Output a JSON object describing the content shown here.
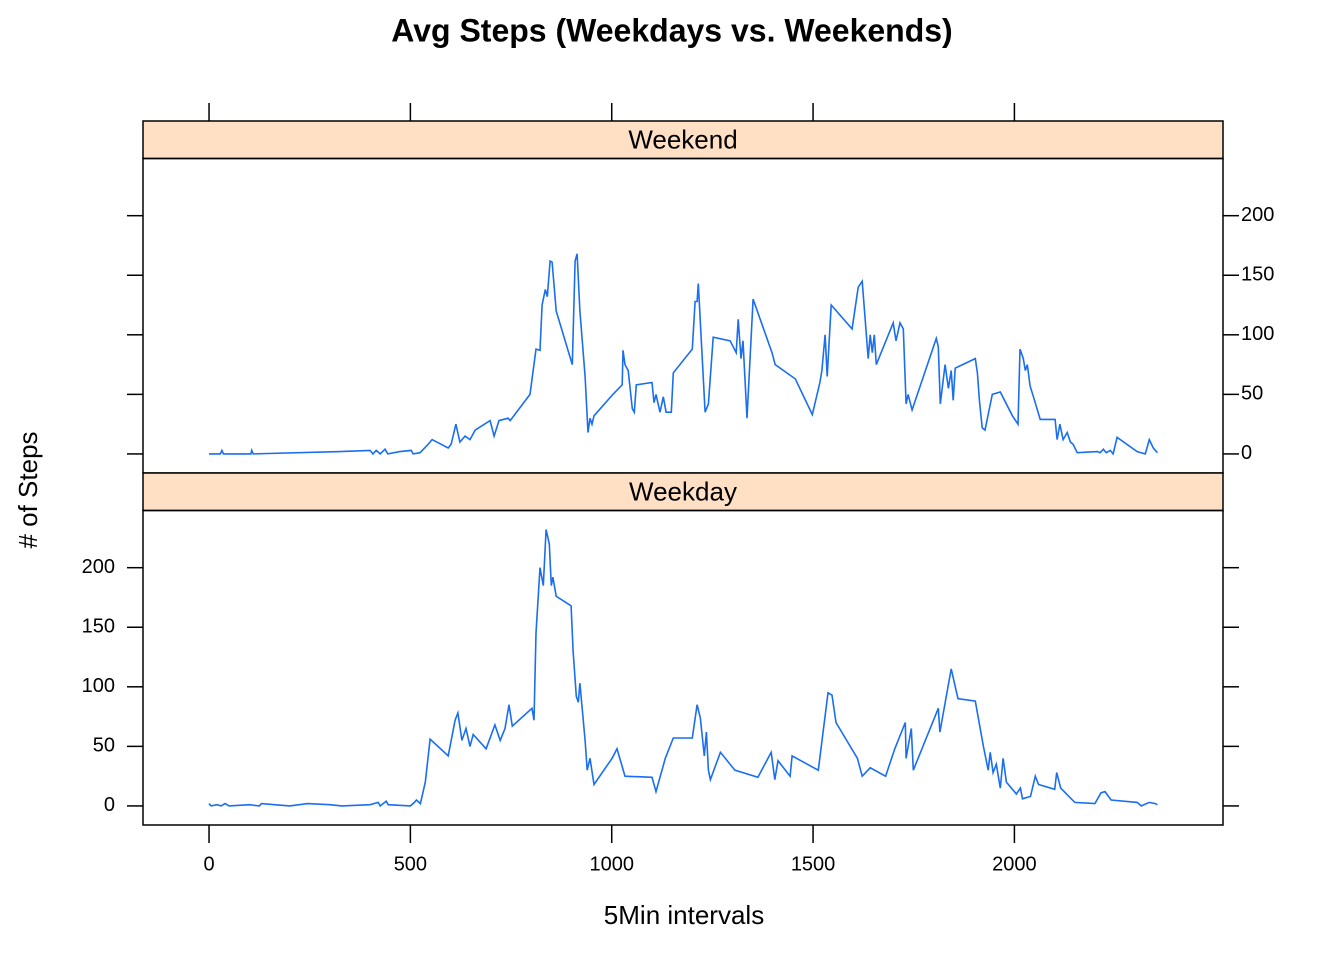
{
  "chart_data": {
    "type": "line",
    "title": "Avg Steps (Weekdays vs. Weekends)",
    "x_label": "5Min intervals",
    "y_label": "# of Steps",
    "xlim": [
      -164,
      2518
    ],
    "ylim": [
      -16,
      248
    ],
    "xticks": [
      0,
      500,
      1000,
      1500,
      2000
    ],
    "yticks": [
      0,
      50,
      100,
      150,
      200
    ],
    "strip_color": "#ffe0c4",
    "series": [
      {
        "name": "Weekend",
        "color": "#1a6ef0",
        "x": [
          0,
          28,
          32,
          36,
          104,
          106,
          110,
          325,
          400,
          407,
          415,
          425,
          437,
          444,
          474,
          502,
          507,
          524,
          544,
          554,
          594,
          601,
          613,
          623,
          636,
          648,
          661,
          698,
          708,
          720,
          743,
          748,
          797,
          812,
          822,
          827,
          835,
          840,
          847,
          852,
          862,
          902,
          909,
          914,
          921,
          934,
          941,
          946,
          951,
          956,
          1003,
          1026,
          1028,
          1033,
          1041,
          1051,
          1056,
          1061,
          1100,
          1105,
          1110,
          1120,
          1128,
          1135,
          1148,
          1153,
          1200,
          1207,
          1212,
          1215,
          1232,
          1240,
          1252,
          1294,
          1309,
          1314,
          1321,
          1326,
          1336,
          1351,
          1398,
          1406,
          1456,
          1498,
          1517,
          1522,
          1530,
          1535,
          1545,
          1597,
          1612,
          1622,
          1637,
          1642,
          1647,
          1652,
          1657,
          1699,
          1706,
          1716,
          1724,
          1731,
          1736,
          1746,
          1806,
          1811,
          1816,
          1828,
          1836,
          1843,
          1848,
          1853,
          1903,
          1908,
          1913,
          1920,
          1927,
          1945,
          1965,
          1995,
          2009,
          2014,
          2022,
          2027,
          2032,
          2039,
          2050,
          2064,
          2101,
          2106,
          2113,
          2121,
          2131,
          2139,
          2146,
          2156,
          2206,
          2213,
          2221,
          2228,
          2238,
          2245,
          2255,
          2305,
          2325,
          2335,
          2345,
          2355
        ],
        "values": [
          0,
          0,
          3,
          0,
          0,
          3,
          0,
          2,
          3,
          0,
          3,
          0,
          4,
          0,
          2,
          3,
          0,
          1,
          8,
          12,
          5,
          8,
          25,
          10,
          15,
          12,
          20,
          28,
          15,
          28,
          30,
          28,
          50,
          88,
          87,
          125,
          138,
          132,
          162,
          161,
          120,
          75,
          162,
          168,
          120,
          65,
          18,
          30,
          25,
          32,
          50,
          58,
          87,
          75,
          70,
          38,
          35,
          58,
          60,
          43,
          50,
          35,
          48,
          35,
          35,
          68,
          88,
          128,
          128,
          143,
          35,
          42,
          98,
          95,
          85,
          113,
          80,
          95,
          30,
          130,
          85,
          75,
          63,
          33,
          60,
          70,
          100,
          65,
          125,
          105,
          140,
          145,
          80,
          100,
          85,
          100,
          75,
          110,
          95,
          110,
          105,
          42,
          50,
          37,
          97,
          90,
          42,
          75,
          55,
          70,
          45,
          72,
          80,
          68,
          45,
          22,
          20,
          50,
          52,
          32,
          25,
          88,
          80,
          70,
          75,
          57,
          45,
          29,
          29,
          12,
          25,
          12,
          18,
          10,
          8,
          1,
          2,
          1,
          4,
          1,
          3,
          0,
          14,
          2,
          0,
          12,
          5,
          1
        ]
      },
      {
        "name": "Weekday",
        "color": "#1a6ef0",
        "x": [
          0,
          5,
          20,
          30,
          40,
          50,
          100,
          125,
          130,
          200,
          245,
          300,
          330,
          400,
          420,
          425,
          440,
          445,
          500,
          510,
          515,
          525,
          537,
          549,
          594,
          611,
          618,
          628,
          638,
          648,
          656,
          688,
          710,
          723,
          735,
          745,
          753,
          802,
          807,
          812,
          822,
          830,
          837,
          845,
          850,
          854,
          862,
          899,
          904,
          912,
          917,
          921,
          934,
          939,
          946,
          956,
          1001,
          1013,
          1033,
          1100,
          1110,
          1133,
          1153,
          1200,
          1212,
          1220,
          1230,
          1235,
          1240,
          1245,
          1270,
          1306,
          1363,
          1396,
          1405,
          1413,
          1443,
          1448,
          1513,
          1537,
          1547,
          1557,
          1610,
          1622,
          1642,
          1680,
          1703,
          1729,
          1731,
          1744,
          1749,
          1811,
          1815,
          1843,
          1860,
          1903,
          1923,
          1935,
          1940,
          1947,
          1955,
          1965,
          1972,
          1980,
          2005,
          2015,
          2020,
          2040,
          2052,
          2060,
          2100,
          2105,
          2115,
          2150,
          2200,
          2215,
          2225,
          2240,
          2305,
          2315,
          2335,
          2350,
          2355
        ],
        "values": [
          2,
          0,
          1,
          0,
          2,
          0,
          1,
          0,
          2,
          0,
          2,
          1,
          0,
          1,
          3,
          0,
          4,
          1,
          0,
          3,
          5,
          2,
          20,
          56,
          42,
          72,
          78,
          55,
          65,
          50,
          60,
          48,
          68,
          55,
          65,
          85,
          67,
          82,
          72,
          145,
          200,
          185,
          232,
          220,
          185,
          192,
          176,
          168,
          130,
          92,
          87,
          103,
          55,
          30,
          40,
          18,
          40,
          48,
          25,
          24,
          12,
          40,
          57,
          57,
          85,
          74,
          42,
          62,
          30,
          22,
          45,
          30,
          24,
          45,
          22,
          38,
          25,
          42,
          30,
          95,
          93,
          70,
          40,
          25,
          32,
          25,
          48,
          70,
          40,
          65,
          30,
          82,
          62,
          115,
          90,
          88,
          50,
          30,
          45,
          28,
          35,
          15,
          40,
          20,
          10,
          15,
          6,
          8,
          25,
          18,
          14,
          28,
          15,
          3,
          2,
          11,
          12,
          5,
          3,
          0,
          3,
          2,
          1
        ]
      }
    ]
  }
}
